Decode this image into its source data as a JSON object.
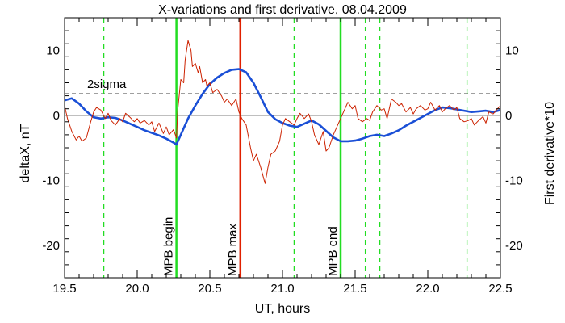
{
  "chart_data": {
    "type": "line",
    "title": "X-variations and first derivative, 08.04.2009",
    "xlabel": "UT, hours",
    "ylabel_left": "deltaX, nT",
    "ylabel_right": "First derivative*10",
    "xlim": [
      19.5,
      22.5
    ],
    "ylim": [
      -25,
      15
    ],
    "x_ticks": [
      19.5,
      20.0,
      20.5,
      21.0,
      21.5,
      22.0,
      22.5
    ],
    "x_tick_labels": [
      "19.5",
      "20.0",
      "20.5",
      "21.0",
      "21.5",
      "22.0",
      "22.5"
    ],
    "y_ticks": [
      -20,
      -10,
      0,
      10
    ],
    "y_tick_labels": [
      "-20",
      "-10",
      "0",
      "10"
    ],
    "grid": false,
    "colors": {
      "deltaX": "#1a4fd6",
      "derivative": "#cc2200",
      "mpb_boundary": "#22dd22",
      "mpb_max": "#e02000",
      "sigma": "#000000",
      "axes": "#000000"
    },
    "series": [
      {
        "name": "deltaX, nT",
        "axis": "left",
        "x": [
          19.5,
          19.55,
          19.6,
          19.65,
          19.7,
          19.75,
          19.8,
          19.85,
          19.9,
          19.95,
          20.0,
          20.05,
          20.1,
          20.15,
          20.2,
          20.25,
          20.27,
          20.3,
          20.35,
          20.4,
          20.45,
          20.5,
          20.55,
          20.6,
          20.65,
          20.7,
          20.75,
          20.8,
          20.85,
          20.9,
          20.95,
          21.0,
          21.05,
          21.1,
          21.15,
          21.2,
          21.25,
          21.3,
          21.35,
          21.4,
          21.45,
          21.5,
          21.55,
          21.6,
          21.65,
          21.7,
          21.75,
          21.8,
          21.85,
          21.9,
          21.95,
          22.0,
          22.05,
          22.1,
          22.15,
          22.2,
          22.25,
          22.3,
          22.35,
          22.4,
          22.45,
          22.5
        ],
        "y": [
          2.3,
          2.6,
          1.8,
          0.6,
          -0.3,
          -0.5,
          -0.3,
          -0.4,
          -0.8,
          -1.3,
          -1.8,
          -2.3,
          -2.7,
          -3.1,
          -3.6,
          -4.2,
          -4.5,
          -3.0,
          -0.5,
          1.5,
          3.3,
          4.8,
          5.8,
          6.5,
          7.0,
          7.1,
          6.6,
          5.0,
          2.8,
          0.5,
          -0.6,
          -1.2,
          -1.6,
          -1.8,
          -1.3,
          -0.8,
          -1.4,
          -2.4,
          -3.4,
          -4.0,
          -4.0,
          -3.9,
          -3.6,
          -3.2,
          -3.0,
          -3.2,
          -2.8,
          -2.3,
          -1.6,
          -1.0,
          -0.4,
          0.2,
          0.8,
          1.2,
          1.1,
          0.9,
          0.7,
          0.5,
          0.6,
          0.7,
          0.5,
          0.8
        ]
      },
      {
        "name": "First derivative*10",
        "axis": "right",
        "x": [
          19.5,
          19.52,
          19.55,
          19.58,
          19.6,
          19.62,
          19.65,
          19.68,
          19.7,
          19.72,
          19.75,
          19.78,
          19.8,
          19.82,
          19.85,
          19.88,
          19.9,
          19.92,
          19.95,
          19.98,
          20.0,
          20.02,
          20.05,
          20.08,
          20.1,
          20.12,
          20.15,
          20.18,
          20.2,
          20.22,
          20.25,
          20.27,
          20.28,
          20.3,
          20.32,
          20.33,
          20.35,
          20.37,
          20.38,
          20.4,
          20.42,
          20.43,
          20.45,
          20.47,
          20.48,
          20.5,
          20.52,
          20.55,
          20.58,
          20.6,
          20.62,
          20.65,
          20.68,
          20.7,
          20.72,
          20.75,
          20.78,
          20.8,
          20.82,
          20.85,
          20.88,
          20.9,
          20.92,
          20.95,
          20.98,
          21.0,
          21.02,
          21.05,
          21.08,
          21.1,
          21.12,
          21.15,
          21.18,
          21.2,
          21.22,
          21.25,
          21.28,
          21.3,
          21.32,
          21.35,
          21.38,
          21.4,
          21.42,
          21.45,
          21.48,
          21.5,
          21.52,
          21.55,
          21.58,
          21.6,
          21.62,
          21.65,
          21.68,
          21.7,
          21.72,
          21.75,
          21.78,
          21.8,
          21.82,
          21.85,
          21.88,
          21.9,
          21.92,
          21.95,
          21.98,
          22.0,
          22.02,
          22.05,
          22.08,
          22.1,
          22.12,
          22.15,
          22.18,
          22.2,
          22.22,
          22.25,
          22.28,
          22.3,
          22.32,
          22.35,
          22.38,
          22.4,
          22.42,
          22.45,
          22.48,
          22.5
        ],
        "y": [
          1.5,
          -0.5,
          -2.5,
          -3.8,
          -3.2,
          -4.0,
          -3.5,
          -1.0,
          0.5,
          1.2,
          0.8,
          -0.5,
          0.3,
          -0.8,
          -1.5,
          -0.5,
          -1.0,
          0.3,
          -0.3,
          -1.0,
          -0.5,
          -1.2,
          -0.8,
          -1.5,
          -1.0,
          -2.5,
          -1.2,
          -2.8,
          -1.8,
          -3.0,
          -2.2,
          -3.5,
          1.0,
          5.5,
          5.0,
          8.5,
          11.5,
          10.0,
          7.5,
          8.0,
          6.5,
          7.5,
          5.0,
          5.5,
          4.5,
          5.0,
          3.5,
          4.0,
          3.0,
          2.0,
          2.5,
          1.5,
          2.5,
          0.5,
          -0.5,
          -1.5,
          -5.0,
          -7.0,
          -6.0,
          -8.0,
          -10.5,
          -8.0,
          -6.0,
          -5.5,
          -4.0,
          -1.5,
          -0.5,
          -1.0,
          -1.5,
          -0.5,
          0.3,
          -0.5,
          0.2,
          -1.0,
          -3.0,
          -4.5,
          -2.5,
          -5.5,
          -5.0,
          -3.0,
          -1.5,
          -0.5,
          0.5,
          2.0,
          1.0,
          1.5,
          -0.5,
          -1.0,
          -0.5,
          -0.8,
          0.5,
          1.5,
          0.8,
          1.0,
          -0.5,
          2.5,
          2.0,
          1.5,
          1.8,
          0.5,
          1.2,
          0.2,
          1.0,
          1.5,
          0.8,
          1.0,
          2.0,
          0.8,
          1.5,
          0.5,
          1.0,
          1.5,
          0.8,
          1.2,
          -0.5,
          -1.0,
          -0.8,
          -0.5,
          -1.5,
          -0.8,
          -0.2,
          -1.2,
          0.5,
          0.2,
          1.0,
          1.5
        ]
      }
    ],
    "sigma_level": 3.3,
    "sigma_label": "2sigma",
    "vertical_markers": [
      {
        "name": "MPB begin",
        "x": 20.27,
        "style": "solid",
        "color": "#22dd22"
      },
      {
        "name": "MPB max",
        "x": 20.71,
        "style": "solid",
        "color": "#e02000"
      },
      {
        "name": "MPB end",
        "x": 21.4,
        "style": "solid",
        "color": "#22dd22"
      },
      {
        "x": 19.77,
        "style": "dashed",
        "color": "#22dd22"
      },
      {
        "x": 21.08,
        "style": "dashed",
        "color": "#22dd22"
      },
      {
        "x": 21.57,
        "style": "dashed",
        "color": "#22dd22"
      },
      {
        "x": 21.67,
        "style": "dashed",
        "color": "#22dd22"
      },
      {
        "x": 22.27,
        "style": "dashed",
        "color": "#22dd22"
      }
    ]
  }
}
